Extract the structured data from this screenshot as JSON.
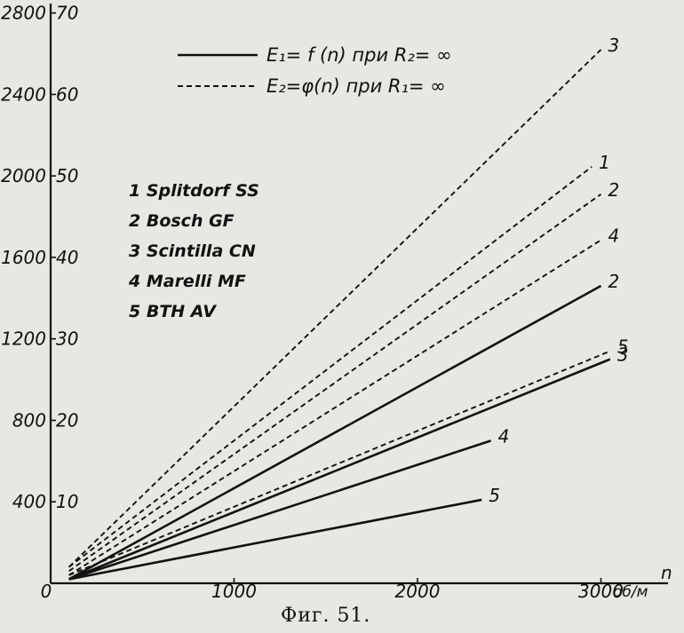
{
  "figure": {
    "caption": "Фиг. 51."
  },
  "chart_data": {
    "type": "line",
    "x": {
      "unit_label": "об/м",
      "axis_letter": "n",
      "ticks": [
        0,
        1000,
        2000,
        3000
      ],
      "tick_labels": [
        "0",
        "1000",
        "2000",
        "3000"
      ],
      "range": [
        0,
        3200
      ]
    },
    "y": {
      "outer_ticks": [
        400,
        800,
        1200,
        1600,
        2000,
        2400,
        2800
      ],
      "outer_tick_labels": [
        "400",
        "800",
        "1200",
        "1600",
        "2000",
        "2400",
        "2800"
      ],
      "inner_ticks": [
        10,
        20,
        30,
        40,
        50,
        60,
        70
      ],
      "inner_tick_labels": [
        "10",
        "20",
        "30",
        "40",
        "50",
        "60",
        "70"
      ],
      "range": [
        0,
        2800
      ]
    },
    "legend_styles": [
      {
        "label": "E₁= f (n) при R₂= ∞",
        "style": "solid"
      },
      {
        "label": "E₂=φ(n) при R₁= ∞",
        "style": "dashed"
      }
    ],
    "machines": [
      "1 Splitdorf SS",
      "2 Bosch GF",
      "3 Scintilla CN",
      "4 Marelli MF",
      "5 BTH  AV"
    ],
    "series": [
      {
        "name": "3",
        "style": "dashed",
        "x": [
          100,
          3000
        ],
        "y": [
          80,
          2620
        ]
      },
      {
        "name": "1",
        "style": "dashed",
        "x": [
          100,
          2950
        ],
        "y": [
          80,
          2045
        ]
      },
      {
        "name": "2",
        "style": "dashed",
        "x": [
          100,
          3000
        ],
        "y": [
          60,
          1910
        ]
      },
      {
        "name": "4",
        "style": "dashed",
        "x": [
          100,
          3000
        ],
        "y": [
          40,
          1685
        ]
      },
      {
        "name": "5",
        "style": "dashed",
        "x": [
          100,
          3050
        ],
        "y": [
          40,
          1140
        ]
      },
      {
        "name": "2",
        "style": "solid",
        "x": [
          100,
          3000
        ],
        "y": [
          20,
          1460
        ]
      },
      {
        "name": "3",
        "style": "solid",
        "x": [
          100,
          3050
        ],
        "y": [
          20,
          1100
        ]
      },
      {
        "name": "4",
        "style": "solid",
        "x": [
          100,
          2400
        ],
        "y": [
          20,
          700
        ]
      },
      {
        "name": "5",
        "style": "solid",
        "x": [
          100,
          2350
        ],
        "y": [
          20,
          410
        ]
      }
    ]
  }
}
